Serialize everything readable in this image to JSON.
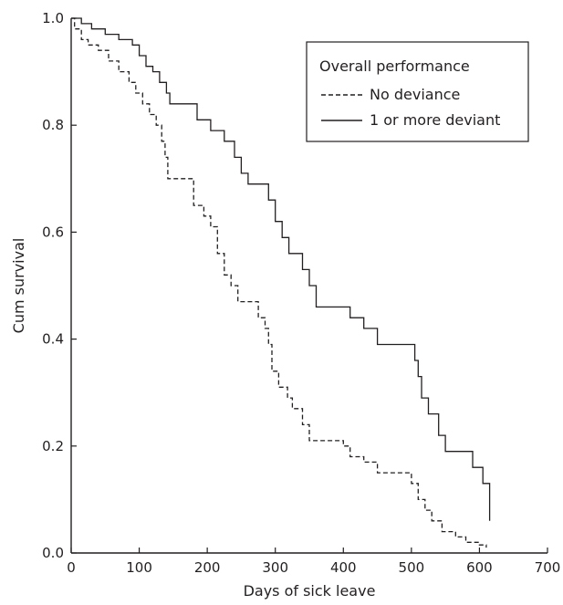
{
  "chart_data": {
    "type": "line",
    "title": "",
    "xlabel": "Days of sick leave",
    "ylabel": "Cum survival",
    "xlim": [
      0,
      700
    ],
    "ylim": [
      0.0,
      1.0
    ],
    "x_ticks": [
      "0",
      "100",
      "200",
      "300",
      "400",
      "500",
      "600",
      "700"
    ],
    "y_ticks": [
      "0.0",
      "0.2",
      "0.4",
      "0.6",
      "0.8",
      "1.0"
    ],
    "grid": false,
    "legend": {
      "title": "Overall performance",
      "placement": "top-right"
    },
    "series": [
      {
        "name": "No deviance",
        "style": "dashed",
        "color": "#231f20",
        "points": [
          [
            0,
            1.0
          ],
          [
            5,
            0.98
          ],
          [
            15,
            0.96
          ],
          [
            25,
            0.95
          ],
          [
            40,
            0.94
          ],
          [
            55,
            0.92
          ],
          [
            70,
            0.9
          ],
          [
            85,
            0.88
          ],
          [
            95,
            0.86
          ],
          [
            105,
            0.84
          ],
          [
            115,
            0.82
          ],
          [
            125,
            0.8
          ],
          [
            133,
            0.77
          ],
          [
            138,
            0.74
          ],
          [
            142,
            0.7
          ],
          [
            175,
            0.7
          ],
          [
            180,
            0.65
          ],
          [
            195,
            0.63
          ],
          [
            205,
            0.61
          ],
          [
            215,
            0.56
          ],
          [
            225,
            0.52
          ],
          [
            235,
            0.5
          ],
          [
            245,
            0.47
          ],
          [
            265,
            0.47
          ],
          [
            275,
            0.44
          ],
          [
            285,
            0.42
          ],
          [
            290,
            0.39
          ],
          [
            295,
            0.34
          ],
          [
            305,
            0.31
          ],
          [
            318,
            0.29
          ],
          [
            325,
            0.27
          ],
          [
            340,
            0.24
          ],
          [
            350,
            0.21
          ],
          [
            390,
            0.21
          ],
          [
            400,
            0.2
          ],
          [
            410,
            0.18
          ],
          [
            430,
            0.17
          ],
          [
            450,
            0.15
          ],
          [
            495,
            0.15
          ],
          [
            500,
            0.13
          ],
          [
            510,
            0.1
          ],
          [
            520,
            0.08
          ],
          [
            530,
            0.06
          ],
          [
            545,
            0.04
          ],
          [
            565,
            0.03
          ],
          [
            580,
            0.02
          ],
          [
            600,
            0.015
          ],
          [
            610,
            0.01
          ]
        ]
      },
      {
        "name": "1 or more deviant",
        "style": "solid",
        "color": "#231f20",
        "points": [
          [
            0,
            1.0
          ],
          [
            15,
            0.99
          ],
          [
            30,
            0.98
          ],
          [
            50,
            0.97
          ],
          [
            70,
            0.96
          ],
          [
            90,
            0.95
          ],
          [
            100,
            0.93
          ],
          [
            110,
            0.91
          ],
          [
            120,
            0.9
          ],
          [
            130,
            0.88
          ],
          [
            140,
            0.86
          ],
          [
            145,
            0.84
          ],
          [
            175,
            0.84
          ],
          [
            185,
            0.81
          ],
          [
            205,
            0.79
          ],
          [
            225,
            0.77
          ],
          [
            240,
            0.74
          ],
          [
            250,
            0.71
          ],
          [
            260,
            0.69
          ],
          [
            285,
            0.69
          ],
          [
            290,
            0.66
          ],
          [
            300,
            0.62
          ],
          [
            310,
            0.59
          ],
          [
            320,
            0.56
          ],
          [
            340,
            0.53
          ],
          [
            350,
            0.5
          ],
          [
            360,
            0.46
          ],
          [
            400,
            0.46
          ],
          [
            410,
            0.44
          ],
          [
            430,
            0.42
          ],
          [
            450,
            0.39
          ],
          [
            495,
            0.39
          ],
          [
            505,
            0.36
          ],
          [
            510,
            0.33
          ],
          [
            515,
            0.29
          ],
          [
            525,
            0.26
          ],
          [
            540,
            0.22
          ],
          [
            550,
            0.19
          ],
          [
            580,
            0.19
          ],
          [
            590,
            0.16
          ],
          [
            605,
            0.13
          ],
          [
            615,
            0.06
          ]
        ]
      }
    ]
  }
}
